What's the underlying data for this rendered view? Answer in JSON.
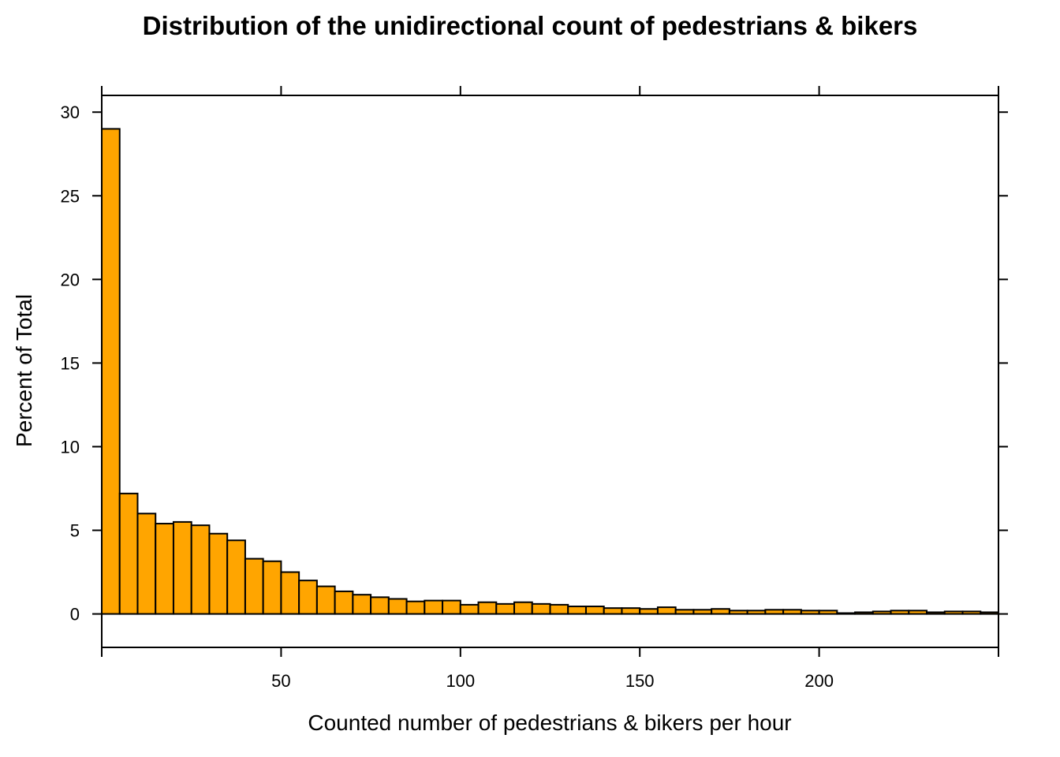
{
  "chart_data": {
    "type": "bar",
    "title": "Distribution of the unidirectional count of pedestrians & bikers",
    "xlabel": "Counted number of pedestrians & bikers per hour",
    "ylabel": "Percent of Total",
    "bar_color": "#FFA500",
    "border_color": "#000000",
    "xlim": [
      0,
      250
    ],
    "ylim": [
      -2,
      31
    ],
    "x_ticks": [
      50,
      100,
      150,
      200
    ],
    "y_ticks": [
      0,
      5,
      10,
      15,
      20,
      25,
      30
    ],
    "bin_width": 5,
    "bins_start": [
      0,
      5,
      10,
      15,
      20,
      25,
      30,
      35,
      40,
      45,
      50,
      55,
      60,
      65,
      70,
      75,
      80,
      85,
      90,
      95,
      100,
      105,
      110,
      115,
      120,
      125,
      130,
      135,
      140,
      145,
      150,
      155,
      160,
      165,
      170,
      175,
      180,
      185,
      190,
      195,
      200,
      205,
      210,
      215,
      220,
      225,
      230,
      235,
      240,
      245
    ],
    "values": [
      29.0,
      7.2,
      6.0,
      5.4,
      5.5,
      5.3,
      4.8,
      4.4,
      3.3,
      3.15,
      2.5,
      2.0,
      1.65,
      1.35,
      1.15,
      1.0,
      0.9,
      0.75,
      0.8,
      0.8,
      0.55,
      0.7,
      0.6,
      0.7,
      0.6,
      0.55,
      0.45,
      0.45,
      0.35,
      0.35,
      0.3,
      0.4,
      0.25,
      0.25,
      0.3,
      0.2,
      0.2,
      0.25,
      0.25,
      0.2,
      0.2,
      0.05,
      0.1,
      0.15,
      0.2,
      0.2,
      0.1,
      0.15,
      0.15,
      0.1
    ]
  }
}
